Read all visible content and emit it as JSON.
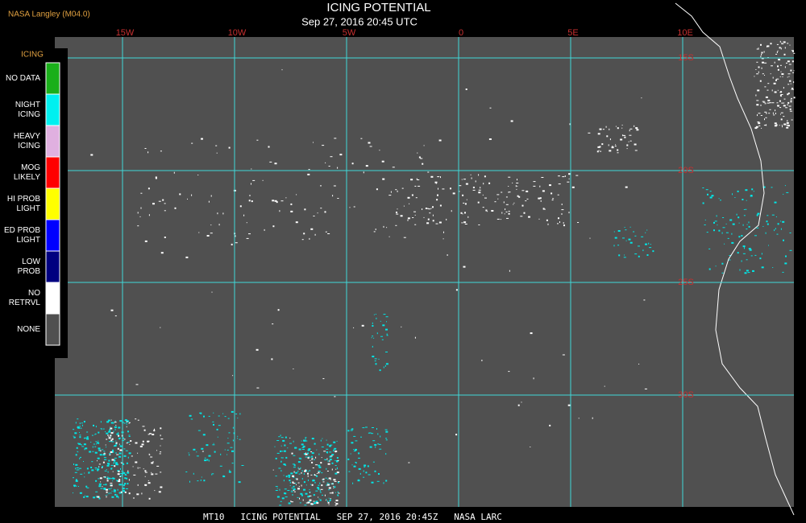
{
  "header": {
    "source": "NASA Langley (M04.0)",
    "title": "ICING POTENTIAL",
    "subtitle": "Sep 27, 2016 20:45 UTC"
  },
  "map": {
    "longitude_labels": [
      "15W",
      "10W",
      "5W",
      "0",
      "5E",
      "10E"
    ],
    "latitude_labels": [
      "15S",
      "20S",
      "25S",
      "30S"
    ]
  },
  "legend": {
    "title": "ICING",
    "items": [
      {
        "lines": [
          "NO DATA"
        ],
        "color": "#1aaf1a"
      },
      {
        "lines": [
          "NIGHT",
          "ICING"
        ],
        "color": "#00f0f0"
      },
      {
        "lines": [
          "HEAVY",
          "ICING"
        ],
        "color": "#e0b0e0"
      },
      {
        "lines": [
          "MOG",
          "LIKELY"
        ],
        "color": "#ff0000"
      },
      {
        "lines": [
          "HI PROB",
          "LIGHT"
        ],
        "color": "#ffff00"
      },
      {
        "lines": [
          "ED PROB",
          "LIGHT"
        ],
        "color": "#0000ff"
      },
      {
        "lines": [
          "LOW",
          "PROB"
        ],
        "color": "#000080"
      },
      {
        "lines": [
          "NO",
          "RETRVL"
        ],
        "color": "#ffffff"
      },
      {
        "lines": [
          "NONE"
        ],
        "color": "#505050"
      }
    ]
  },
  "footer": "MT10   ICING POTENTIAL   SEP 27, 2016 20:45Z   NASA LARC"
}
